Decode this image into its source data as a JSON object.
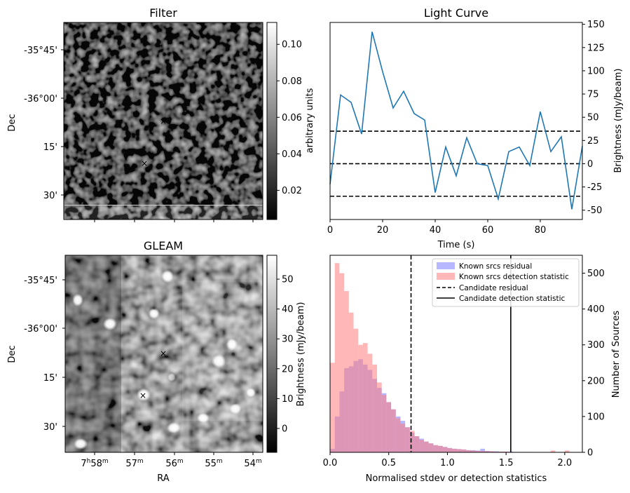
{
  "filter_panel": {
    "title": "Filter",
    "ylabel": "Dec",
    "dec_ticks": [
      "-35°45'",
      "-36°00'",
      "15'",
      "30'"
    ],
    "colorbar_label": "arbitrary units",
    "colorbar_ticks": [
      "0.10",
      "0.08",
      "0.06",
      "0.04",
      "0.02"
    ],
    "colorbar_values": [
      0.1,
      0.08,
      0.06,
      0.04,
      0.02
    ],
    "colorbar_range": [
      0.004,
      0.112
    ],
    "markers": [
      {
        "name": "candidate",
        "symbol": "×",
        "color": "#d62728"
      },
      {
        "name": "reference",
        "symbol": "×",
        "color": "#1f1fd6"
      }
    ]
  },
  "gleam_panel": {
    "title": "GLEAM",
    "ylabel": "Dec",
    "xlabel": "RA",
    "dec_ticks": [
      "-35°45'",
      "-36°00'",
      "15'",
      "30'"
    ],
    "ra_ticks": [
      {
        "h": "7",
        "hu": "h",
        "m": "58",
        "mu": "m"
      },
      {
        "h": "",
        "hu": "",
        "m": "57",
        "mu": "m"
      },
      {
        "h": "",
        "hu": "",
        "m": "56",
        "mu": "m"
      },
      {
        "h": "",
        "hu": "",
        "m": "55",
        "mu": "m"
      },
      {
        "h": "",
        "hu": "",
        "m": "54",
        "mu": "m"
      }
    ],
    "colorbar_label": "Brightness (mJy/beam)",
    "colorbar_ticks": [
      "50",
      "40",
      "30",
      "20",
      "10",
      "0"
    ],
    "colorbar_values": [
      50,
      40,
      30,
      20,
      10,
      0
    ],
    "colorbar_range": [
      -8,
      58
    ],
    "markers": [
      {
        "name": "candidate",
        "symbol": "×",
        "color": "#d62728"
      },
      {
        "name": "reference",
        "symbol": "×",
        "color": "#1f1fd6"
      }
    ]
  },
  "chart_data": [
    {
      "type": "line",
      "title": "Light Curve",
      "xlabel": "Time (s)",
      "ylabel": "Brightness (mJy/beam)",
      "xlim": [
        0,
        96
      ],
      "ylim": [
        -60,
        152
      ],
      "xticks": [
        0,
        20,
        40,
        60,
        80
      ],
      "yticks": [
        150,
        125,
        100,
        75,
        50,
        25,
        0,
        -25,
        -50
      ],
      "x": [
        0,
        4,
        8,
        12,
        16,
        20,
        24,
        28,
        32,
        36,
        40,
        44,
        48,
        52,
        56,
        60,
        64,
        68,
        72,
        76,
        80,
        84,
        88,
        92,
        96
      ],
      "y": [
        -22,
        74,
        66,
        32,
        142,
        99,
        60,
        78,
        54,
        47,
        -31,
        18,
        -13,
        28,
        0,
        -2,
        -38,
        13,
        18,
        -2,
        56,
        13,
        29,
        -49,
        19
      ],
      "line_color": "#1f77b4",
      "hlines": [
        35,
        0,
        -35
      ],
      "hline_style": "dashed"
    },
    {
      "type": "histogram",
      "xlabel": "Normalised stdev or detection statistics",
      "ylabel": "Number of Sources",
      "xlim": [
        0,
        2.15
      ],
      "ylim": [
        0,
        550
      ],
      "xticks": [
        "0.0",
        "0.5",
        "1.0",
        "1.5",
        "2.0"
      ],
      "xtick_values": [
        0,
        0.5,
        1.0,
        1.5,
        2.0
      ],
      "yticks": [
        0,
        100,
        200,
        300,
        400,
        500
      ],
      "bin_start": 0,
      "bin_width": 0.04,
      "series": [
        {
          "name": "Known srcs residual",
          "color": "#7b7bff",
          "values": [
            10,
            100,
            170,
            235,
            240,
            255,
            260,
            245,
            230,
            205,
            180,
            165,
            140,
            120,
            100,
            88,
            70,
            55,
            45,
            38,
            30,
            25,
            20,
            18,
            15,
            12,
            10,
            9,
            8,
            6,
            6,
            5,
            10,
            4,
            3,
            3,
            2,
            2,
            2,
            1,
            1,
            1,
            1,
            0,
            0,
            0,
            0,
            0,
            0,
            0,
            0,
            0,
            0
          ]
        },
        {
          "name": "Known srcs detection statistic",
          "color": "#ff7b7b",
          "values": [
            250,
            528,
            500,
            450,
            390,
            345,
            300,
            305,
            275,
            245,
            195,
            160,
            140,
            120,
            95,
            80,
            70,
            60,
            45,
            35,
            30,
            25,
            20,
            18,
            15,
            12,
            10,
            9,
            8,
            6,
            5,
            4,
            4,
            3,
            3,
            2,
            2,
            2,
            1,
            1,
            1,
            1,
            1,
            0,
            0,
            0,
            0,
            5,
            0,
            0,
            5,
            0,
            0
          ]
        }
      ],
      "vlines": [
        {
          "name": "Candidate residual",
          "x": 0.69,
          "style": "dashed"
        },
        {
          "name": "Candidate detection statistic",
          "x": 1.54,
          "style": "solid"
        }
      ],
      "legend_position": "top-right"
    }
  ]
}
